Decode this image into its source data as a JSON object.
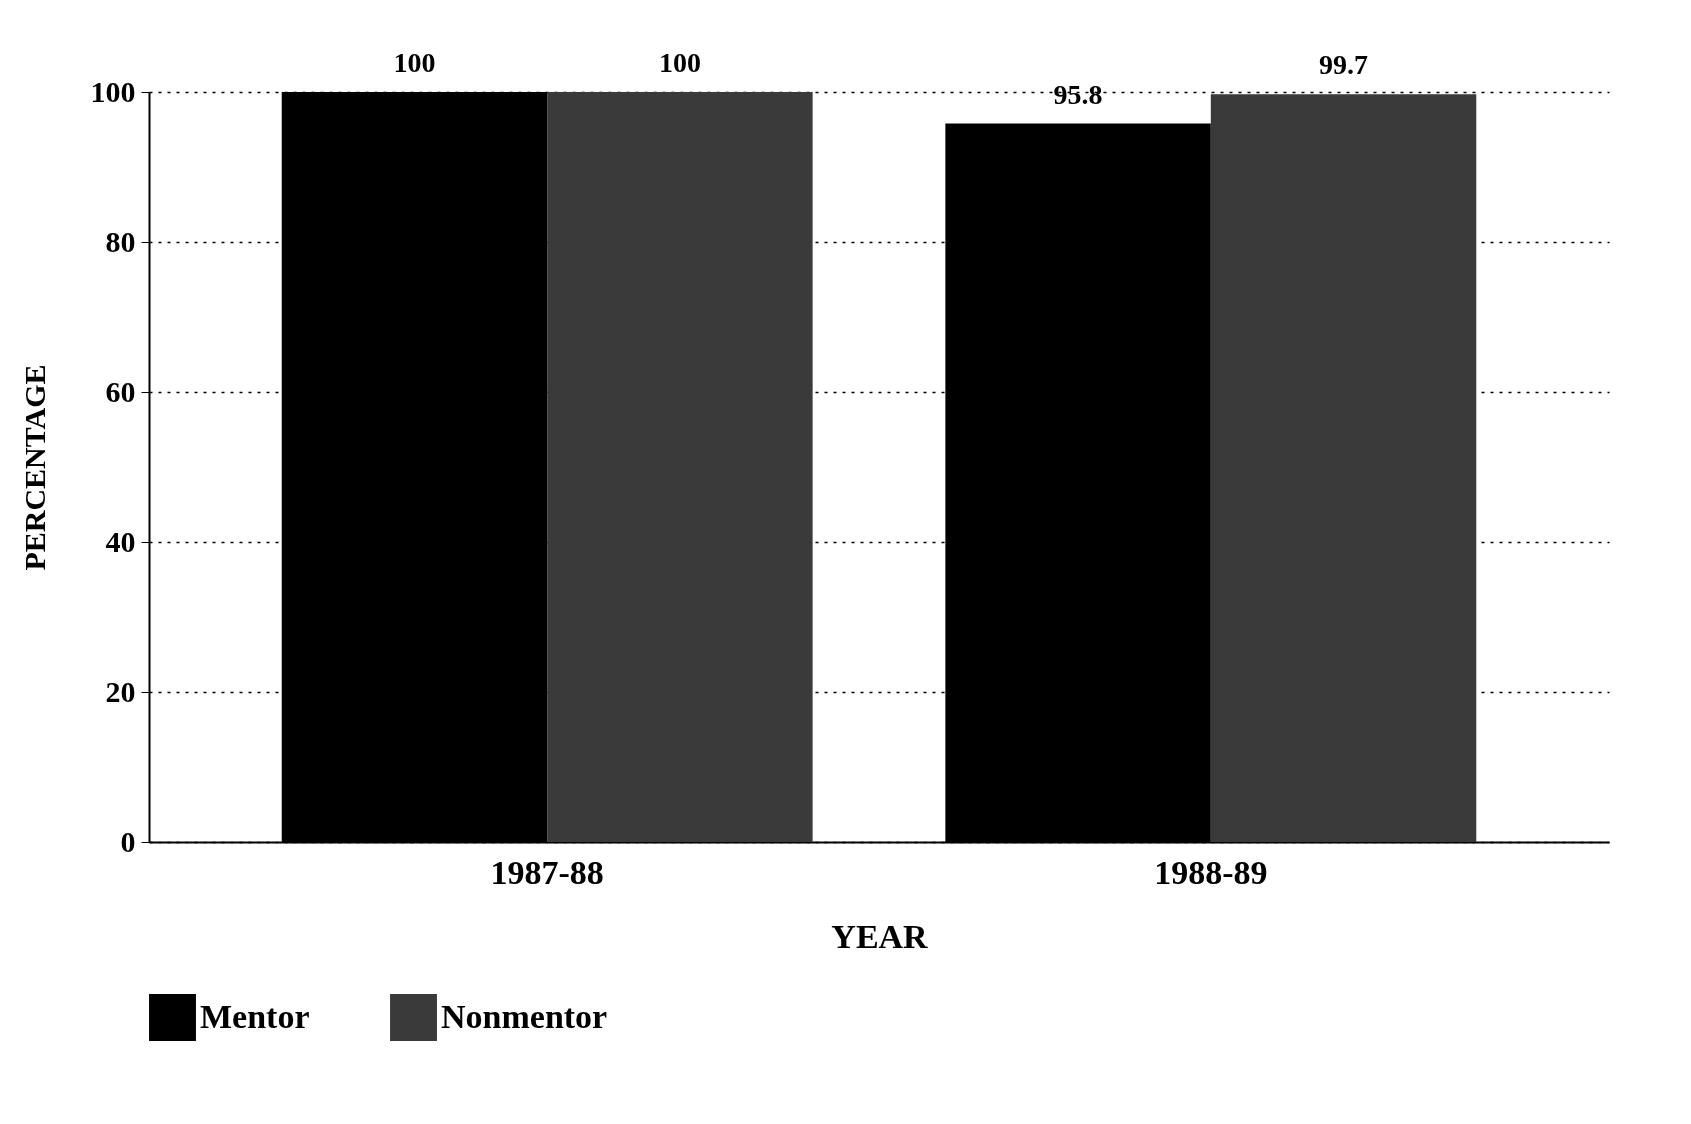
{
  "chart_data": {
    "type": "bar",
    "xlabel": "YEAR",
    "ylabel": "PERCENTAGE",
    "categories": [
      "1987-88",
      "1988-89"
    ],
    "series": [
      {
        "name": "Mentor",
        "color": "#000000",
        "values": [
          100,
          95.8
        ]
      },
      {
        "name": "Nonmentor",
        "color": "#3a3a3a",
        "values": [
          100,
          99.7
        ]
      }
    ],
    "ylim": [
      0,
      100
    ],
    "yticks": [
      0,
      20,
      40,
      60,
      80,
      100
    ],
    "grid": "y",
    "legend": "bottom",
    "data_labels": true
  }
}
